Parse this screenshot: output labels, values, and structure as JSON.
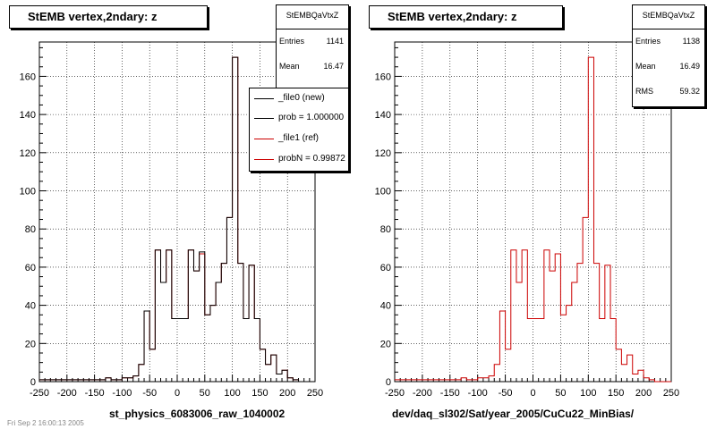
{
  "left_panel": {
    "title": "StEMB  vertex,2ndary: z",
    "stats": {
      "name": "StEMBQaVtxZ",
      "entries_label": "Entries",
      "entries": "1141",
      "mean_label": "Mean",
      "mean": "16.47"
    },
    "legend": [
      {
        "label": "_file0 (new)",
        "color": "#000000"
      },
      {
        "label": "prob = 1.000000",
        "color": "#000000"
      },
      {
        "label": "_file1 (ref)",
        "color": "#cc0000"
      },
      {
        "label": "probN = 0.99872",
        "color": "#cc0000"
      }
    ],
    "xlabel": "st_physics_6083006_raw_1040002"
  },
  "right_panel": {
    "title": "StEMB  vertex,2ndary: z",
    "stats": {
      "name": "StEMBQaVtxZ",
      "entries_label": "Entries",
      "entries": "1138",
      "mean_label": "Mean",
      "mean": "16.49",
      "rms_label": "RMS",
      "rms": "59.32"
    },
    "xlabel": "dev/daq_sl302/Sat/year_2005/CuCu22_MinBias/"
  },
  "footer": "Fri Sep  2 16:00:13 2005",
  "chart_data": [
    {
      "type": "line",
      "title": "StEMB  vertex,2ndary: z",
      "xlabel": "st_physics_6083006_raw_1040002",
      "xlim": [
        -250,
        250
      ],
      "ylim": [
        0,
        178
      ],
      "xticks": [
        -250,
        -200,
        -150,
        -100,
        -50,
        0,
        50,
        100,
        150,
        200,
        250
      ],
      "yticks": [
        0,
        20,
        40,
        60,
        80,
        100,
        120,
        140,
        160
      ],
      "grid": true,
      "legend_position": "top-right",
      "bin_width": 10,
      "bin_edges": [
        -250,
        250
      ],
      "series": [
        {
          "name": "_file1 (ref)",
          "color": "#cc0000",
          "values": [
            1,
            1,
            1,
            1,
            1,
            1,
            1,
            1,
            1,
            1,
            1,
            1,
            2,
            1,
            1,
            2,
            2,
            3,
            9,
            37,
            17,
            69,
            52,
            69,
            33,
            33,
            33,
            69,
            58,
            67,
            35,
            40,
            52,
            62,
            86,
            170,
            62,
            33,
            61,
            33,
            17,
            9,
            14,
            4,
            6,
            2,
            1,
            0,
            0,
            0
          ]
        },
        {
          "name": "_file0 (new)",
          "color": "#000000",
          "values": [
            1,
            1,
            1,
            1,
            1,
            1,
            1,
            1,
            1,
            1,
            1,
            1,
            2,
            1,
            1,
            2,
            2,
            3,
            9,
            37,
            17,
            69,
            52,
            69,
            33,
            33,
            33,
            69,
            58,
            68,
            35,
            40,
            52,
            62,
            86,
            170,
            62,
            33,
            61,
            33,
            17,
            9,
            14,
            4,
            6,
            2,
            1,
            0,
            0,
            0
          ]
        }
      ]
    },
    {
      "type": "line",
      "title": "StEMB  vertex,2ndary: z",
      "xlabel": "dev/daq_sl302/Sat/year_2005/CuCu22_MinBias/",
      "xlim": [
        -250,
        250
      ],
      "ylim": [
        0,
        178
      ],
      "xticks": [
        -250,
        -200,
        -150,
        -100,
        -50,
        0,
        50,
        100,
        150,
        200,
        250
      ],
      "yticks": [
        0,
        20,
        40,
        60,
        80,
        100,
        120,
        140,
        160
      ],
      "grid": true,
      "bin_width": 10,
      "bin_edges": [
        -250,
        250
      ],
      "series": [
        {
          "name": "",
          "color": "#cc0000",
          "values": [
            1,
            1,
            1,
            1,
            1,
            1,
            1,
            1,
            1,
            1,
            1,
            1,
            2,
            1,
            1,
            2,
            2,
            3,
            9,
            37,
            17,
            69,
            52,
            69,
            33,
            33,
            33,
            69,
            58,
            67,
            35,
            40,
            52,
            62,
            86,
            170,
            62,
            33,
            61,
            33,
            17,
            9,
            14,
            4,
            6,
            2,
            1,
            0,
            0,
            0
          ]
        }
      ]
    }
  ]
}
